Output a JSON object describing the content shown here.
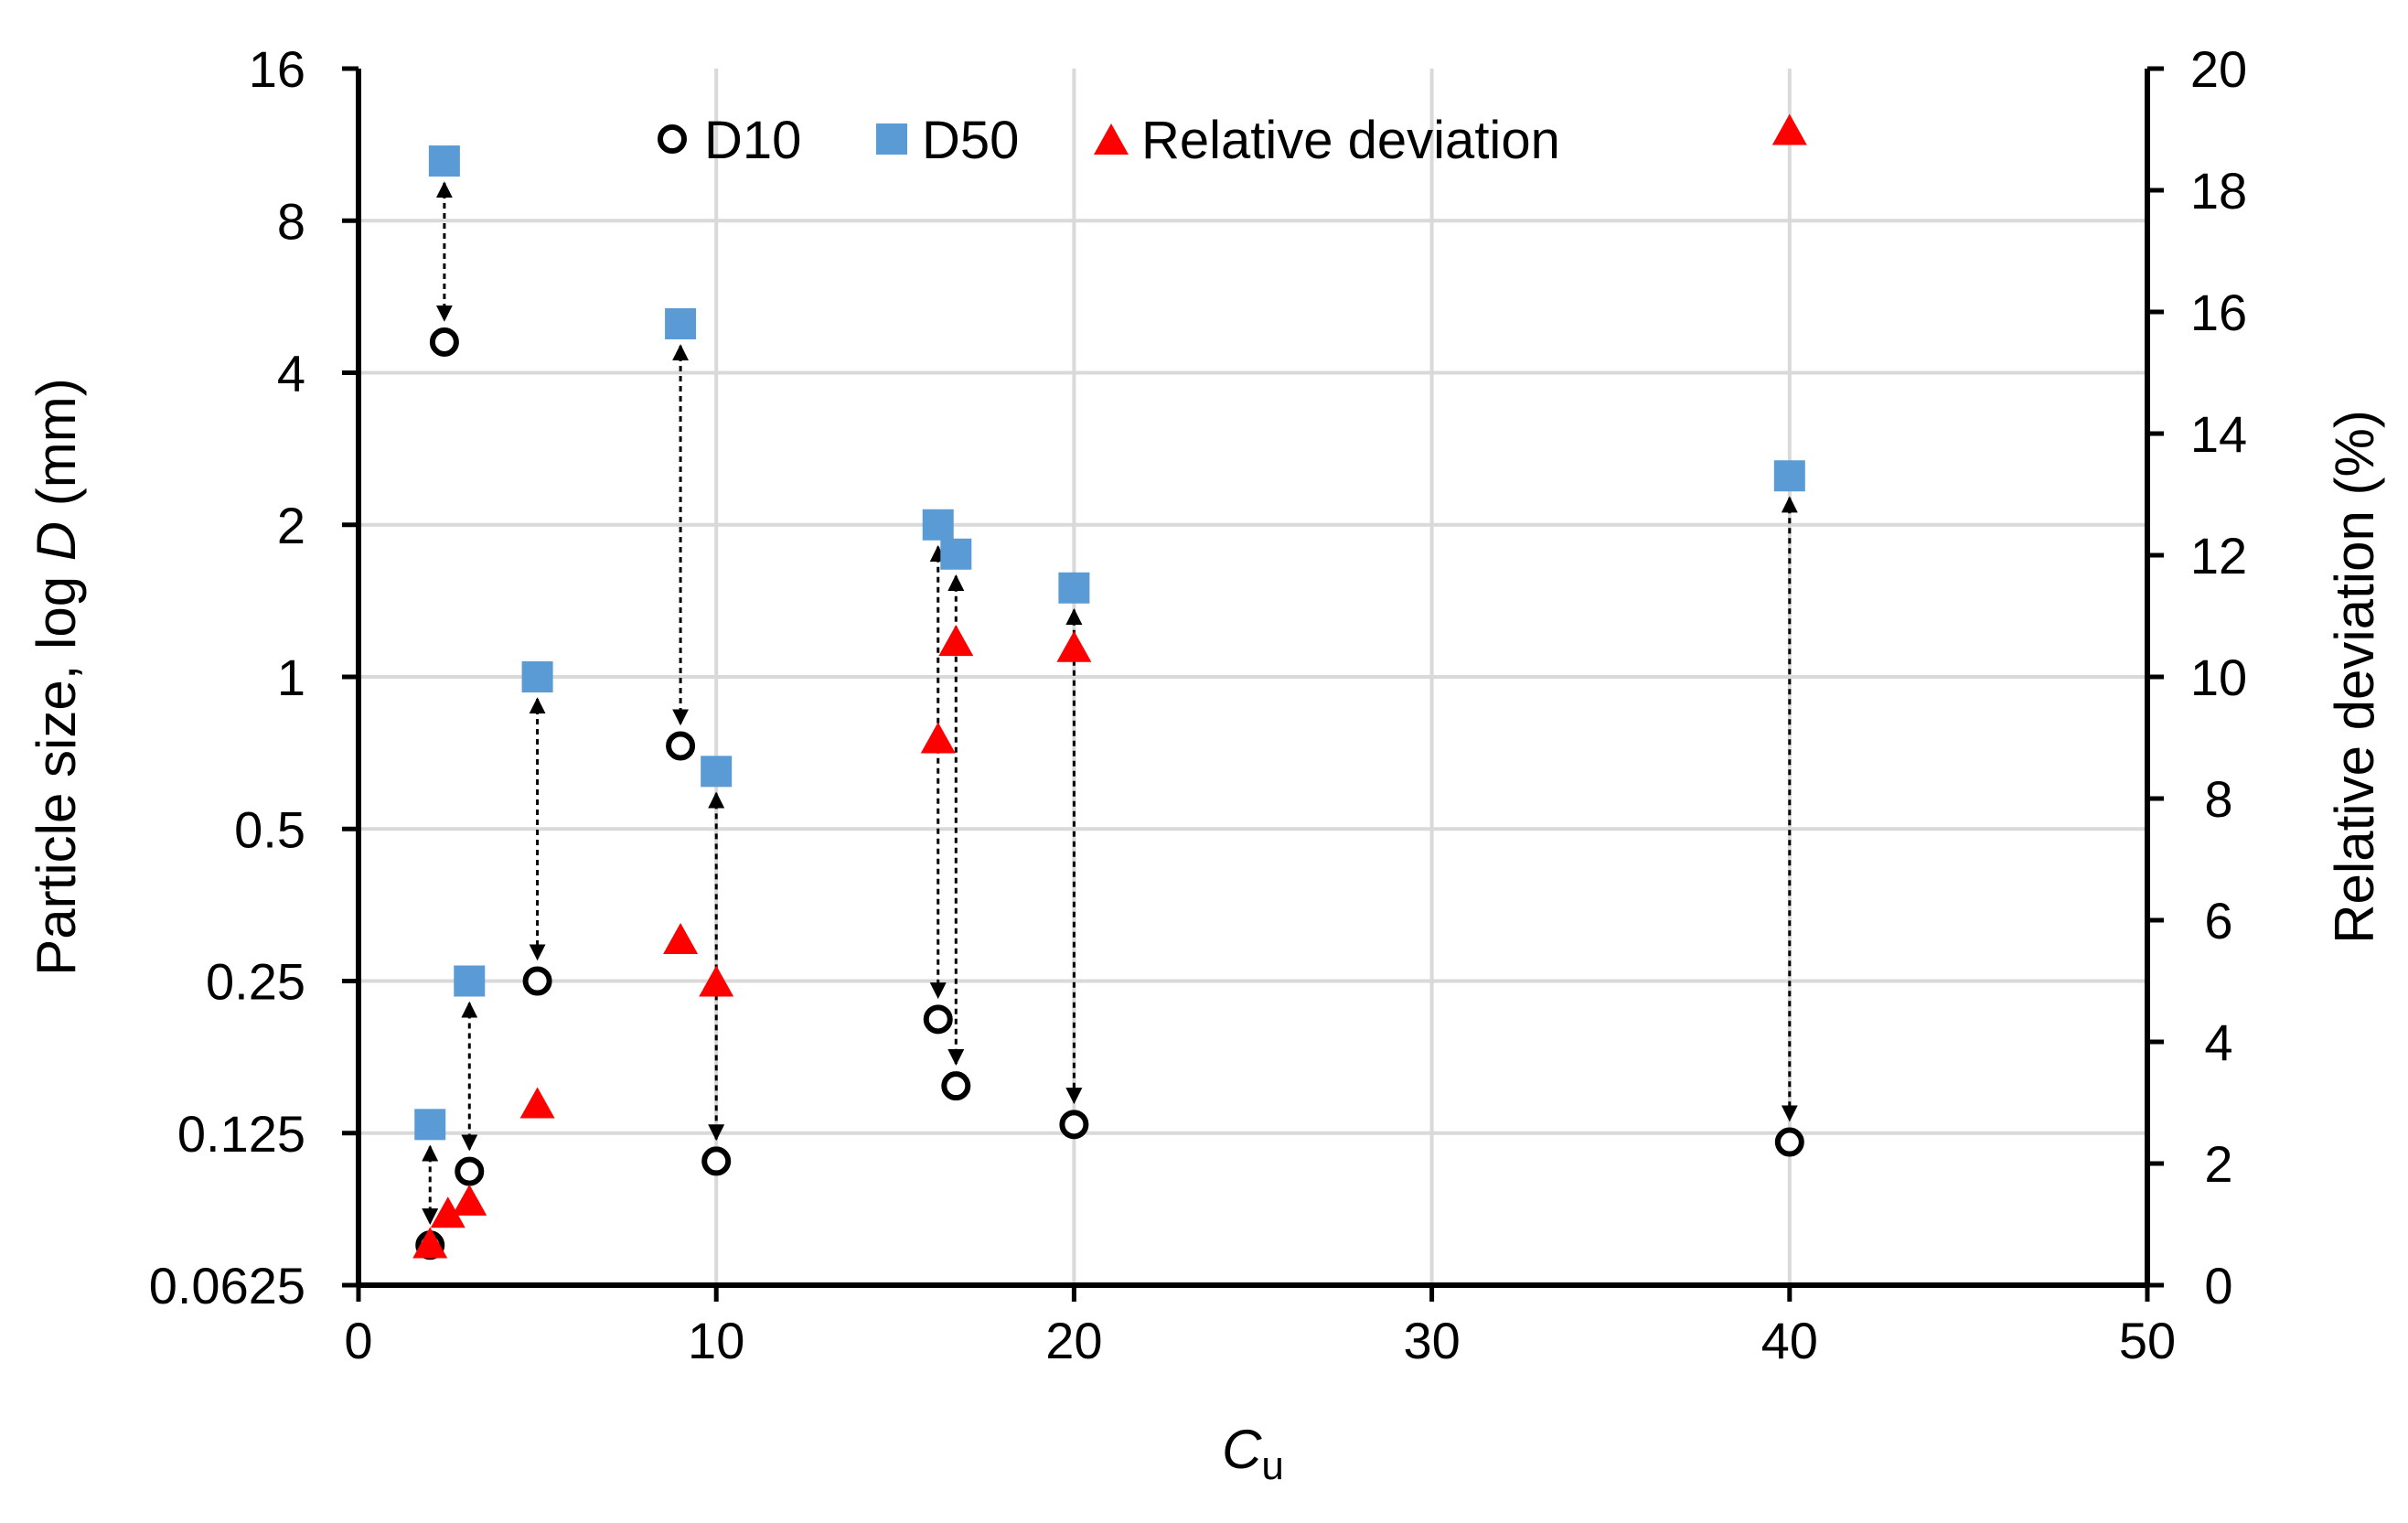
{
  "chart_data": {
    "type": "scatter",
    "x_axis": {
      "label_main": "C",
      "label_sub": "u",
      "range": [
        0,
        50
      ],
      "ticks": [
        0,
        10,
        20,
        30,
        40,
        50
      ]
    },
    "y_axis_left": {
      "label": "Particle size, log D (mm)",
      "label_parts": [
        "Particle size, log ",
        "D",
        " (mm)"
      ],
      "scale": "log2",
      "range": [
        0.0625,
        16
      ],
      "ticks": [
        0.0625,
        0.125,
        0.25,
        0.5,
        1,
        2,
        4,
        8,
        16
      ]
    },
    "y_axis_right": {
      "label": "Relative deviation (%)",
      "scale": "linear",
      "range": [
        0,
        20
      ],
      "ticks": [
        0,
        2,
        4,
        6,
        8,
        10,
        12,
        14,
        16,
        18,
        20
      ]
    },
    "grid": true,
    "legend": {
      "placement": "top-center",
      "entries": [
        "D10",
        "D50",
        "Relative deviation"
      ]
    },
    "series": [
      {
        "name": "D10",
        "axis": "left",
        "marker": "open-circle",
        "color": "#000000",
        "points": [
          [
            2,
            0.075
          ],
          [
            2.4,
            4.6
          ],
          [
            3.1,
            0.105
          ],
          [
            5,
            0.25
          ],
          [
            9,
            0.73
          ],
          [
            10,
            0.11
          ],
          [
            16.2,
            0.21
          ],
          [
            16.7,
            0.155
          ],
          [
            20,
            0.13
          ],
          [
            40,
            0.12
          ]
        ]
      },
      {
        "name": "D50",
        "axis": "left",
        "marker": "square",
        "color": "#5B9BD5",
        "points": [
          [
            2,
            0.13
          ],
          [
            2.4,
            10.5
          ],
          [
            3.1,
            0.25
          ],
          [
            5,
            1.0
          ],
          [
            9,
            5.0
          ],
          [
            10,
            0.65
          ],
          [
            16.2,
            2.0
          ],
          [
            16.7,
            1.75
          ],
          [
            20,
            1.5
          ],
          [
            40,
            2.5
          ]
        ]
      },
      {
        "name": "Relative deviation",
        "axis": "right",
        "marker": "triangle",
        "color": "#FF0000",
        "points": [
          [
            2,
            0.7
          ],
          [
            2.5,
            1.2
          ],
          [
            3.1,
            1.4
          ],
          [
            5,
            3.0
          ],
          [
            9,
            5.7
          ],
          [
            10,
            5.0
          ],
          [
            16.2,
            9.0
          ],
          [
            16.7,
            10.6
          ],
          [
            20,
            10.5
          ],
          [
            40,
            19.0
          ]
        ]
      }
    ],
    "arrows": [
      {
        "x": 2,
        "from": 0.13,
        "to": 0.075
      },
      {
        "x": 2.4,
        "from": 10.5,
        "to": 4.6
      },
      {
        "x": 3.1,
        "from": 0.25,
        "to": 0.105
      },
      {
        "x": 5,
        "from": 1.0,
        "to": 0.25
      },
      {
        "x": 9,
        "from": 5.0,
        "to": 0.73
      },
      {
        "x": 10,
        "from": 0.65,
        "to": 0.11
      },
      {
        "x": 16.2,
        "from": 2.0,
        "to": 0.21
      },
      {
        "x": 16.7,
        "from": 1.75,
        "to": 0.155
      },
      {
        "x": 20,
        "from": 1.5,
        "to": 0.13
      },
      {
        "x": 40,
        "from": 2.5,
        "to": 0.12
      }
    ]
  }
}
